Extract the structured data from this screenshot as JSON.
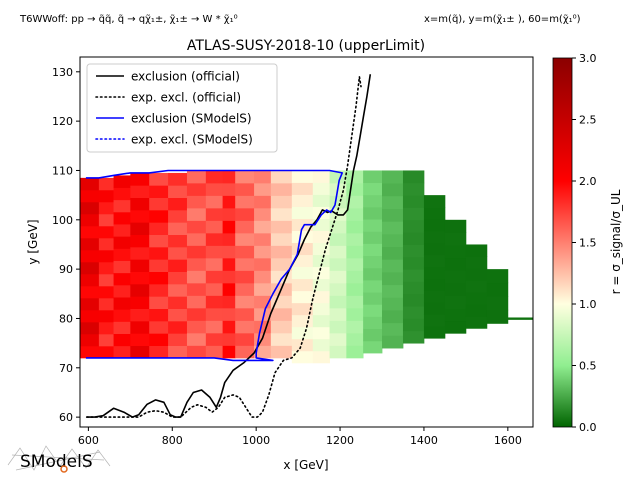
{
  "header": {
    "left": "T6WWoff: pp → q̃q̃, q̃ → qχ̃₁±, χ̃₁± → W * χ̃₁⁰",
    "right": "x=m(q̃), y=m(χ̃₁± ), 60=m(χ̃₁⁰)"
  },
  "logo_text": "SModelS",
  "chart_data": {
    "type": "heatmap",
    "title": "ATLAS-SUSY-2018-10 (upperLimit)",
    "xlabel": "x [GeV]",
    "ylabel": "y [GeV]",
    "xlim": [
      580,
      1660
    ],
    "ylim": [
      58,
      133
    ],
    "xticks": [
      "600",
      "800",
      "1000",
      "1200",
      "1400",
      "1600"
    ],
    "yticks": [
      "60",
      "70",
      "80",
      "90",
      "100",
      "110",
      "120",
      "130"
    ],
    "colorbar": {
      "label": "r = σ_signal/σ_UL",
      "range": [
        0,
        3
      ],
      "ticks": [
        "0.0",
        "0.5",
        "1.0",
        "1.5",
        "2.0",
        "2.5",
        "3.0"
      ],
      "colors": [
        "#006400",
        "#90ee90",
        "#ffffe0",
        "#ff0000",
        "#8b0000"
      ]
    },
    "heatmap_columns": [
      {
        "x0": 580,
        "x1": 625,
        "y0": 72,
        "y1": 108.5,
        "r": 2.15
      },
      {
        "x0": 625,
        "x1": 660,
        "y0": 72,
        "y1": 108.5,
        "r": 1.9
      },
      {
        "x0": 660,
        "x1": 700,
        "y0": 72,
        "y1": 109,
        "r": 1.95
      },
      {
        "x0": 700,
        "x1": 745,
        "y0": 72,
        "y1": 109.5,
        "r": 2.05
      },
      {
        "x0": 745,
        "x1": 790,
        "y0": 72,
        "y1": 109.5,
        "r": 1.85
      },
      {
        "x0": 790,
        "x1": 835,
        "y0": 72,
        "y1": 109.5,
        "r": 1.75
      },
      {
        "x0": 835,
        "x1": 880,
        "y0": 72,
        "y1": 110,
        "r": 1.65
      },
      {
        "x0": 880,
        "x1": 920,
        "y0": 72,
        "y1": 110,
        "r": 1.7
      },
      {
        "x0": 920,
        "x1": 950,
        "y0": 72,
        "y1": 110,
        "r": 1.85
      },
      {
        "x0": 950,
        "x1": 995,
        "y0": 72,
        "y1": 110,
        "r": 1.6
      },
      {
        "x0": 995,
        "x1": 1035,
        "y0": 72,
        "y1": 110,
        "r": 1.45
      },
      {
        "x0": 1035,
        "x1": 1085,
        "y0": 72,
        "y1": 110,
        "r": 1.2
      },
      {
        "x0": 1085,
        "x1": 1135,
        "y0": 71,
        "y1": 110,
        "r": 1.05
      },
      {
        "x0": 1135,
        "x1": 1175,
        "y0": 71,
        "y1": 110,
        "r": 0.95
      },
      {
        "x0": 1175,
        "x1": 1215,
        "y0": 72,
        "y1": 110,
        "r": 0.8
      },
      {
        "x0": 1215,
        "x1": 1255,
        "y0": 72,
        "y1": 110,
        "r": 0.6
      },
      {
        "x0": 1255,
        "x1": 1300,
        "y0": 73,
        "y1": 110,
        "r": 0.4
      },
      {
        "x0": 1300,
        "x1": 1350,
        "y0": 74,
        "y1": 110,
        "r": 0.3
      },
      {
        "x0": 1350,
        "x1": 1400,
        "y0": 75,
        "y1": 110,
        "r": 0.15
      },
      {
        "x0": 1400,
        "x1": 1450,
        "y0": 76,
        "y1": 105,
        "r": 0.05
      },
      {
        "x0": 1450,
        "x1": 1500,
        "y0": 77,
        "y1": 100,
        "r": 0.05
      },
      {
        "x0": 1500,
        "x1": 1550,
        "y0": 78,
        "y1": 95,
        "r": 0.05
      },
      {
        "x0": 1550,
        "x1": 1600,
        "y0": 79,
        "y1": 90,
        "r": 0.05
      },
      {
        "x0": 1600,
        "x1": 1660,
        "y0": 79.8,
        "y1": 80.2,
        "r": 0.05
      }
    ],
    "legend": {
      "placement": "top-left",
      "items": [
        "exclusion (official)",
        "exp. excl. (official)",
        "exclusion (SModelS)",
        "exp. excl. (SModelS)"
      ]
    },
    "series": [
      {
        "name": "exclusion (official)",
        "color": "#000000",
        "style": "solid",
        "points": [
          [
            596,
            60
          ],
          [
            615,
            60
          ],
          [
            635,
            60.3
          ],
          [
            660,
            61.8
          ],
          [
            685,
            61
          ],
          [
            705,
            60
          ],
          [
            720,
            60.5
          ],
          [
            740,
            62.6
          ],
          [
            760,
            63.5
          ],
          [
            780,
            63
          ],
          [
            795,
            60.5
          ],
          [
            808,
            60
          ],
          [
            820,
            60
          ],
          [
            835,
            63
          ],
          [
            850,
            65
          ],
          [
            870,
            65.5
          ],
          [
            890,
            64
          ],
          [
            905,
            62
          ],
          [
            915,
            64
          ],
          [
            925,
            67
          ],
          [
            945,
            69.5
          ],
          [
            970,
            71
          ],
          [
            995,
            73
          ],
          [
            1015,
            76
          ],
          [
            1035,
            81
          ],
          [
            1060,
            86
          ],
          [
            1080,
            90
          ],
          [
            1100,
            93
          ],
          [
            1115,
            96
          ],
          [
            1130,
            98.5
          ],
          [
            1145,
            100
          ],
          [
            1158,
            102
          ],
          [
            1170,
            101.5
          ],
          [
            1180,
            101.8
          ],
          [
            1195,
            101
          ],
          [
            1208,
            101
          ],
          [
            1218,
            102
          ],
          [
            1225,
            106
          ],
          [
            1232,
            110
          ],
          [
            1240,
            113
          ],
          [
            1248,
            117
          ],
          [
            1256,
            121
          ],
          [
            1264,
            125
          ],
          [
            1272,
            129.5
          ]
        ]
      },
      {
        "name": "exp. excl. (official)",
        "color": "#000000",
        "style": "dotted",
        "points": [
          [
            596,
            60
          ],
          [
            620,
            60
          ],
          [
            640,
            60
          ],
          [
            660,
            60
          ],
          [
            680,
            60
          ],
          [
            700,
            60
          ],
          [
            720,
            60
          ],
          [
            740,
            61
          ],
          [
            760,
            61.3
          ],
          [
            780,
            61
          ],
          [
            800,
            60
          ],
          [
            820,
            60
          ],
          [
            845,
            62
          ],
          [
            860,
            62.5
          ],
          [
            880,
            62
          ],
          [
            895,
            61
          ],
          [
            910,
            62
          ],
          [
            925,
            64
          ],
          [
            945,
            64.5
          ],
          [
            960,
            64
          ],
          [
            975,
            62
          ],
          [
            990,
            60
          ],
          [
            1003,
            60
          ],
          [
            1015,
            61
          ],
          [
            1030,
            64.5
          ],
          [
            1045,
            69
          ],
          [
            1065,
            71.5
          ],
          [
            1085,
            72
          ],
          [
            1105,
            74
          ],
          [
            1120,
            78
          ],
          [
            1135,
            84
          ],
          [
            1150,
            89
          ],
          [
            1165,
            94
          ],
          [
            1180,
            98
          ],
          [
            1195,
            102
          ],
          [
            1208,
            106
          ],
          [
            1218,
            111
          ],
          [
            1228,
            117
          ],
          [
            1238,
            123
          ],
          [
            1246,
            129
          ],
          [
            1250,
            127
          ]
        ]
      },
      {
        "name": "exclusion (SModelS)",
        "color": "#0000ff",
        "style": "solid",
        "points": [
          [
            594,
            108.5
          ],
          [
            625,
            108.5
          ],
          [
            660,
            109
          ],
          [
            700,
            109.5
          ],
          [
            745,
            109.5
          ],
          [
            790,
            110
          ],
          [
            835,
            110
          ],
          [
            880,
            110
          ],
          [
            920,
            110
          ],
          [
            950,
            110
          ],
          [
            995,
            110
          ],
          [
            1035,
            110
          ],
          [
            1085,
            110
          ],
          [
            1135,
            110
          ],
          [
            1175,
            110
          ],
          [
            1205,
            109.5
          ],
          [
            1198,
            108
          ],
          [
            1192,
            105
          ],
          [
            1188,
            103
          ],
          [
            1178,
            101.5
          ],
          [
            1168,
            102
          ],
          [
            1155,
            101
          ],
          [
            1140,
            99
          ],
          [
            1115,
            99
          ],
          [
            1108,
            98
          ],
          [
            1098,
            93
          ],
          [
            1080,
            90
          ],
          [
            1060,
            88
          ],
          [
            1040,
            85
          ],
          [
            1022,
            82
          ],
          [
            1008,
            77
          ],
          [
            1000,
            73
          ],
          [
            1000,
            72
          ],
          [
            1040,
            71.5
          ],
          [
            990,
            71.5
          ],
          [
            945,
            71.5
          ],
          [
            900,
            72
          ],
          [
            850,
            72
          ],
          [
            800,
            72
          ],
          [
            745,
            72
          ],
          [
            700,
            72
          ],
          [
            660,
            72
          ],
          [
            625,
            72
          ],
          [
            594,
            72
          ]
        ]
      },
      {
        "name": "exp. excl. (SModelS)",
        "color": "#0000ff",
        "style": "dotted",
        "points": []
      }
    ]
  }
}
